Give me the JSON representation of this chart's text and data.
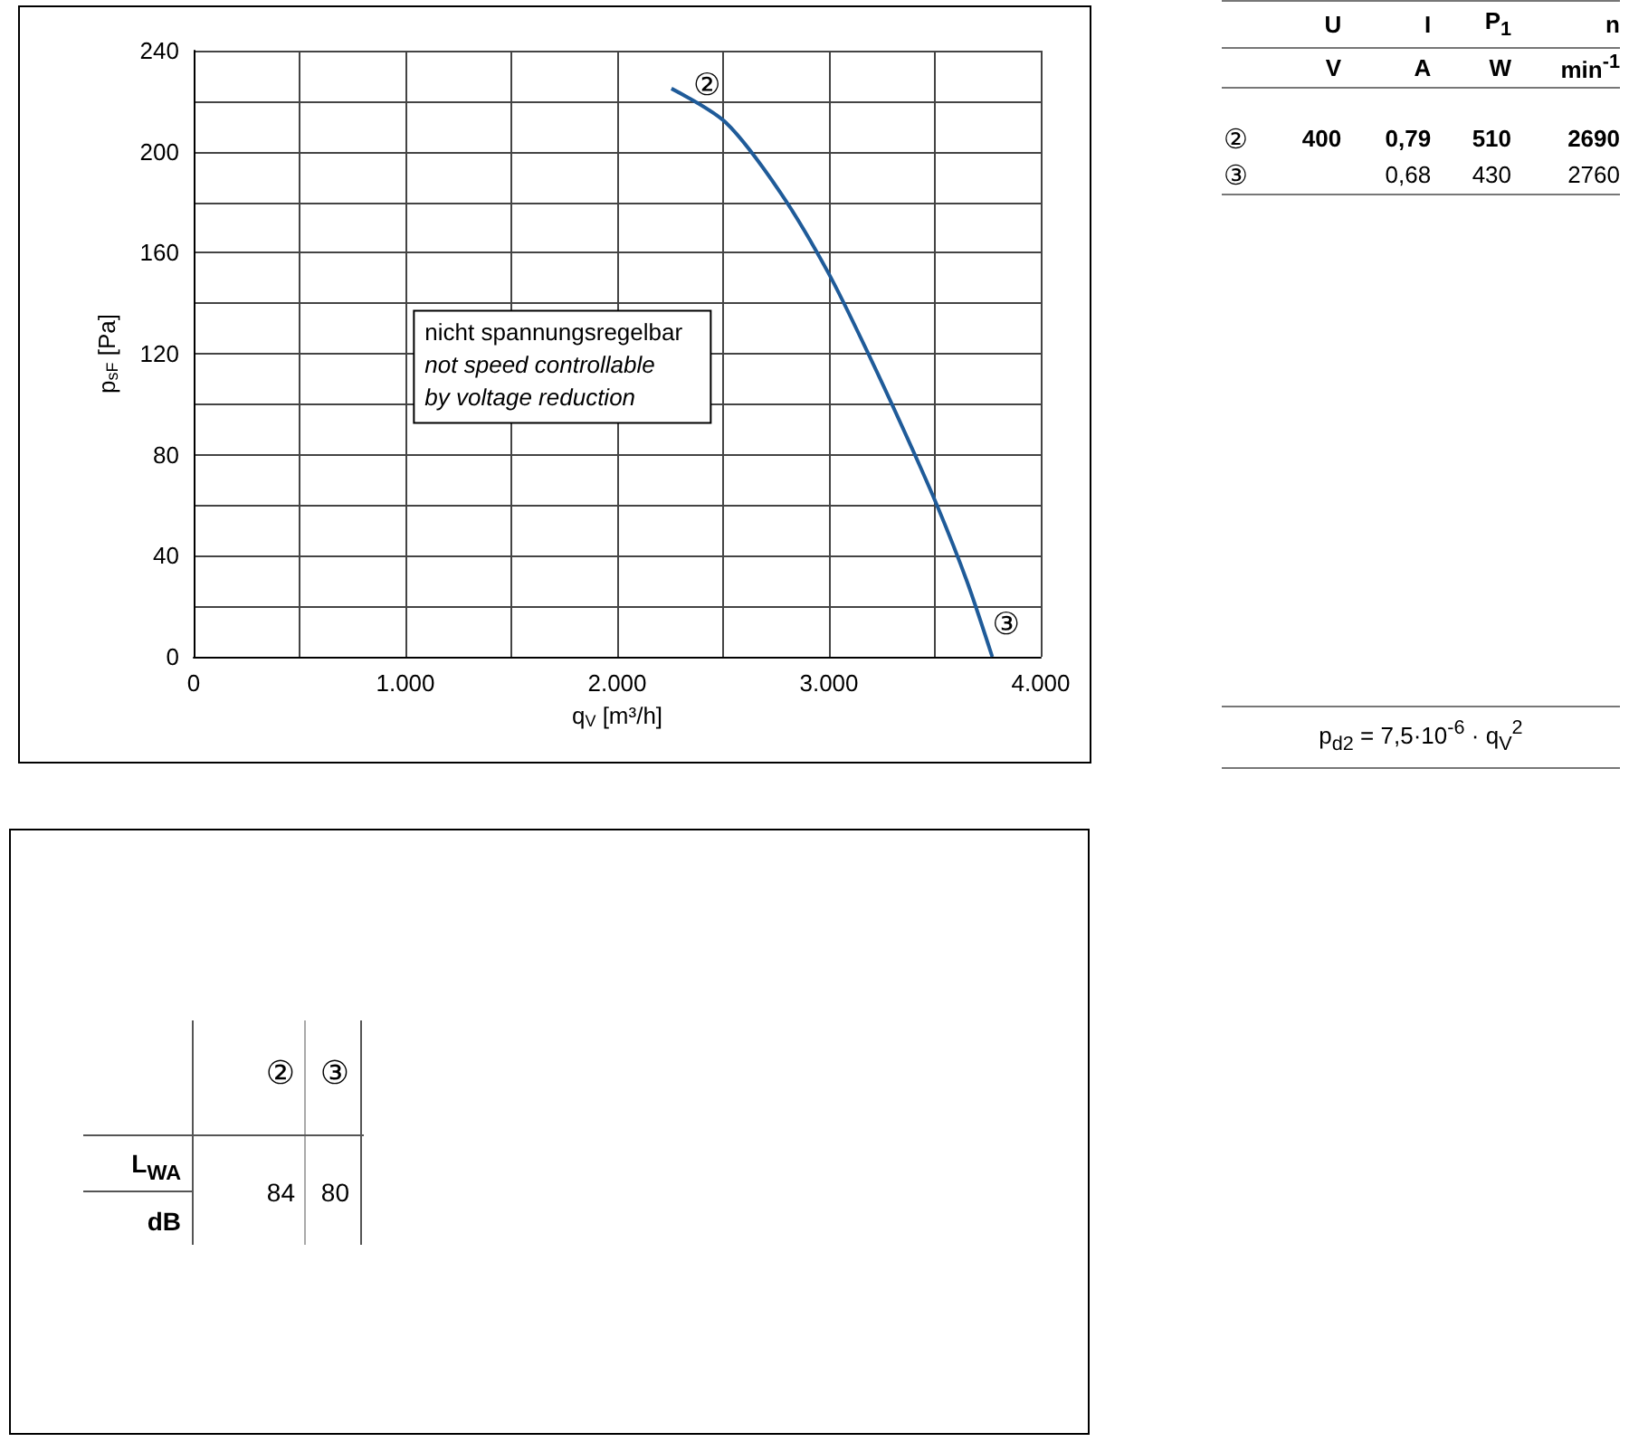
{
  "chart_data": [
    {
      "type": "line",
      "xlabel": "q$_{V}$ [m³/h]",
      "ylabel": "p$_{sF}$ [Pa]",
      "series": [
        {
          "color": "#1f5b99",
          "x": [
            2256,
            2513,
            2769,
            2997,
            3197,
            3368,
            3510,
            3651,
            3771
          ],
          "values": [
            225,
            211.5,
            184,
            152,
            118,
            87,
            60,
            30,
            0
          ]
        }
      ],
      "xlim": [
        0,
        4000
      ],
      "xticks": [
        0,
        {
          "value": 500,
          "label": null
        },
        {
          "value": 1000,
          "label": "1.000"
        },
        {
          "value": 1500,
          "label": null
        },
        {
          "value": 2000,
          "label": "2.000"
        },
        {
          "value": 2500,
          "label": null
        },
        {
          "value": 3000,
          "label": "3.000"
        },
        {
          "value": 3500,
          "label": null
        },
        {
          "value": 4000,
          "label": "4.000"
        }
      ],
      "ylim": [
        0,
        240
      ],
      "yticks": [
        0,
        {
          "value": 20,
          "label": null
        },
        40,
        {
          "value": 60,
          "label": null
        },
        80,
        {
          "value": 100,
          "label": null
        },
        120,
        {
          "value": 140,
          "label": null
        },
        160,
        {
          "value": 180,
          "label": null
        },
        200,
        {
          "value": 220,
          "label": null
        },
        240
      ],
      "grid": true,
      "marker": "none",
      "annotations": [
        {
          "text": "②",
          "x": 2256,
          "y": 225
        },
        {
          "text": "③",
          "x": 3771,
          "y": 0
        },
        "nicht spannungsregelbar",
        "not speed controllable",
        "by voltage reduction"
      ]
    },
    {
      "type": "other",
      "categories": [
        "U",
        "I",
        "P$_{1}$",
        "n"
      ],
      "series": [
        {
          "name": "②",
          "values": [
            400,
            0.79,
            510,
            2690
          ],
          "value_labels": [
            "400",
            "0,79",
            "510",
            "2690"
          ]
        },
        {
          "name": "③",
          "values": [
            null,
            0.68,
            430,
            2760
          ],
          "value_labels": [
            null,
            "0,68",
            "430",
            "2760"
          ]
        }
      ],
      "annotations": [
        "V",
        "A",
        "W",
        "min$^{-1}$",
        "p$_{d2}$ = 7,5·10$^{-6}$ · q$_{V}$$^{2}$"
      ]
    },
    {
      "type": "other",
      "categories": [
        "②",
        "③"
      ],
      "series": [
        {
          "values": [
            84,
            80
          ]
        }
      ],
      "data_labels": true,
      "annotations": [
        "L$_{WA}$",
        "dB"
      ]
    }
  ]
}
